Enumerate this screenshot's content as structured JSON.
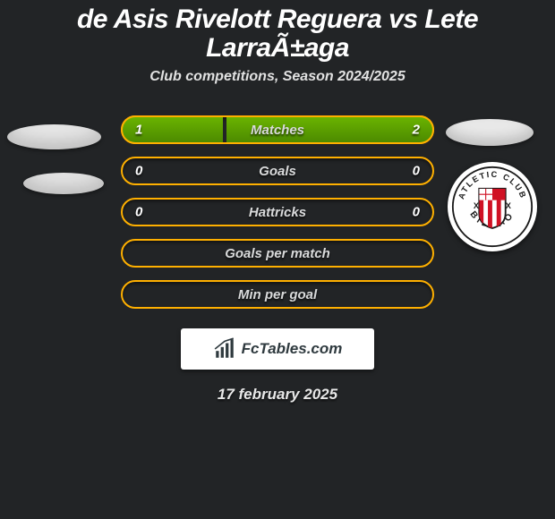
{
  "title": "de Asis Rivelott Reguera vs Lete LarraÃ±aga",
  "subtitle": "Club competitions, Season 2024/2025",
  "colors": {
    "background": "#222426",
    "bar_border": "#ffb000",
    "bar_fill_top": "#6ab300",
    "bar_fill_bottom": "#4c8a00",
    "text_primary": "#ffffff",
    "text_muted": "#d9dadb",
    "watermark_bg": "#ffffff",
    "watermark_text": "#2f3a3f"
  },
  "bars": [
    {
      "label": "Matches",
      "left": "1",
      "right": "2",
      "left_pct": 33,
      "right_pct": 67
    },
    {
      "label": "Goals",
      "left": "0",
      "right": "0",
      "left_pct": 0,
      "right_pct": 0
    },
    {
      "label": "Hattricks",
      "left": "0",
      "right": "0",
      "left_pct": 0,
      "right_pct": 0
    },
    {
      "label": "Goals per match",
      "left": "",
      "right": "",
      "left_pct": 0,
      "right_pct": 0
    },
    {
      "label": "Min per goal",
      "left": "",
      "right": "",
      "left_pct": 0,
      "right_pct": 0
    }
  ],
  "watermark": "FcTables.com",
  "date": "17 february 2025",
  "crest": {
    "top_text": "ATLETIC CLUB",
    "bottom_text": "BILBAO",
    "ring_bg": "#ffffff",
    "ring_text": "#1a1a1a",
    "stripe_red": "#d01124",
    "stripe_white": "#ffffff",
    "shield_border": "#1a1a1a"
  }
}
